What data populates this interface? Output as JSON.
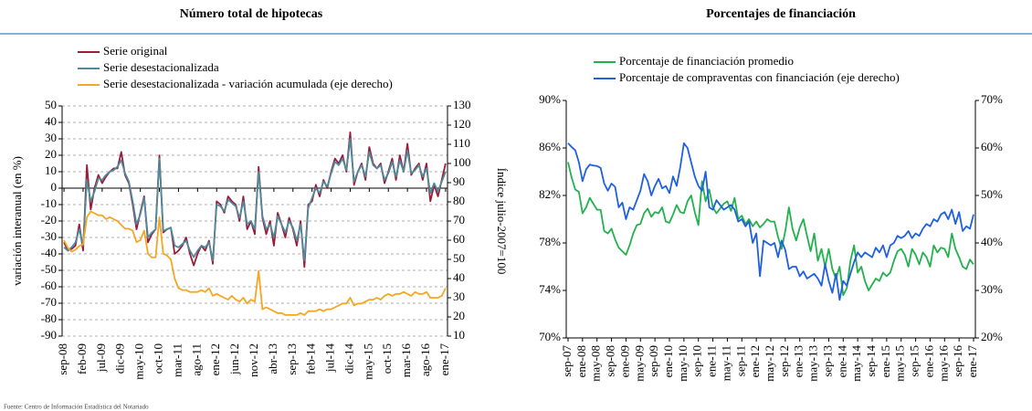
{
  "chart_data": [
    {
      "type": "line",
      "title": "Número total de hipotecas",
      "ylabel": "variación interanual (en %)",
      "y2label": "Índice julio-2007=100",
      "ylim": [
        -90,
        50
      ],
      "yticks": [
        -90,
        -80,
        -70,
        -60,
        -50,
        -40,
        -30,
        -20,
        -10,
        0,
        10,
        20,
        30,
        40,
        50
      ],
      "y2lim": [
        10,
        130
      ],
      "y2ticks": [
        10,
        20,
        30,
        40,
        50,
        60,
        70,
        80,
        90,
        100,
        110,
        120,
        130
      ],
      "grid": true,
      "categories": [
        "sep-08",
        null,
        null,
        null,
        null,
        "feb-09",
        null,
        null,
        null,
        null,
        "jul-09",
        null,
        null,
        null,
        null,
        "dic-09",
        null,
        null,
        null,
        null,
        "may-10",
        null,
        null,
        null,
        null,
        "oct-10",
        null,
        null,
        null,
        null,
        "mar-11",
        null,
        null,
        null,
        null,
        "ago-11",
        null,
        null,
        null,
        null,
        "ene-12",
        null,
        null,
        null,
        null,
        "jun-12",
        null,
        null,
        null,
        null,
        "nov-12",
        null,
        null,
        null,
        null,
        "abr-13",
        null,
        null,
        null,
        null,
        "sep-13",
        null,
        null,
        null,
        null,
        "feb-14",
        null,
        null,
        null,
        null,
        "jul-14",
        null,
        null,
        null,
        null,
        "dic-14",
        null,
        null,
        null,
        null,
        "may-15",
        null,
        null,
        null,
        null,
        "oct-15",
        null,
        null,
        null,
        null,
        "mar-16",
        null,
        null,
        null,
        null,
        "ago-16",
        null,
        null,
        null,
        null,
        "ene-17"
      ],
      "series": [
        {
          "name": "Serie original",
          "color": "#9b1b3a",
          "values": [
            -33,
            -38,
            -37,
            -35,
            -22,
            -38,
            14,
            -13,
            0,
            8,
            3,
            7,
            10,
            12,
            12,
            22,
            8,
            3,
            -10,
            -25,
            -15,
            -5,
            -33,
            -28,
            -25,
            20,
            -27,
            -25,
            -24,
            -40,
            -38,
            -35,
            -30,
            -40,
            -47,
            -40,
            -35,
            -38,
            -32,
            -46,
            -8,
            -10,
            -15,
            -5,
            -8,
            -10,
            -20,
            -5,
            -25,
            -20,
            -28,
            13,
            -18,
            -28,
            -20,
            -35,
            -15,
            -22,
            -30,
            -18,
            -25,
            -35,
            -20,
            -48,
            -10,
            -8,
            2,
            -5,
            5,
            0,
            10,
            18,
            15,
            20,
            10,
            34,
            2,
            10,
            15,
            5,
            25,
            15,
            12,
            15,
            3,
            10,
            18,
            5,
            20,
            10,
            27,
            8,
            12,
            15,
            5,
            15,
            -8,
            2,
            -5,
            5,
            15
          ]
        },
        {
          "name": "Serie desestacionalizada",
          "color": "#4e8a9a",
          "values": [
            -36,
            -38,
            -36,
            -33,
            -25,
            -35,
            5,
            -8,
            -2,
            6,
            5,
            8,
            10,
            11,
            13,
            17,
            9,
            4,
            -8,
            -22,
            -16,
            -6,
            -30,
            -27,
            -25,
            18,
            -26,
            -25,
            -24,
            -35,
            -36,
            -34,
            -32,
            -38,
            -42,
            -38,
            -35,
            -36,
            -33,
            -44,
            -10,
            -11,
            -14,
            -7,
            -9,
            -11,
            -18,
            -8,
            -22,
            -20,
            -25,
            10,
            -17,
            -25,
            -22,
            -30,
            -17,
            -22,
            -27,
            -20,
            -24,
            -32,
            -22,
            -44,
            -12,
            -6,
            0,
            -3,
            4,
            1,
            9,
            16,
            14,
            18,
            11,
            30,
            4,
            10,
            14,
            7,
            22,
            14,
            12,
            14,
            5,
            9,
            16,
            7,
            17,
            10,
            23,
            9,
            11,
            14,
            7,
            12,
            -3,
            3,
            -2,
            4,
            10
          ]
        },
        {
          "name": "Serie desestacionalizada - variación acumulada (eje derecho)",
          "color": "#f5a623",
          "axis": "y2",
          "values": [
            60,
            56,
            54,
            55,
            57,
            58,
            72,
            75,
            74,
            73,
            73,
            71,
            72,
            71,
            70,
            68,
            66,
            66,
            65,
            59,
            60,
            65,
            53,
            51,
            51,
            72,
            53,
            52,
            50,
            40,
            35,
            34,
            34,
            33,
            33,
            33,
            34,
            33,
            35,
            31,
            32,
            31,
            30,
            29,
            31,
            29,
            28,
            30,
            27,
            29,
            28,
            44,
            24,
            25,
            24,
            23,
            22,
            22,
            21,
            21,
            21,
            21,
            22,
            21,
            23,
            23,
            23,
            24,
            23,
            24,
            24,
            25,
            26,
            27,
            27,
            30,
            26,
            27,
            27,
            28,
            29,
            29,
            30,
            29,
            31,
            32,
            31,
            32,
            32,
            33,
            32,
            31,
            33,
            32,
            32,
            33,
            30,
            30,
            30,
            31,
            35
          ]
        }
      ]
    },
    {
      "type": "line",
      "title": "Porcentajes de financiación",
      "ylim": [
        70,
        90
      ],
      "yticks": [
        {
          "value": 70,
          "label": "70%"
        },
        {
          "value": 74,
          "label": "74%"
        },
        {
          "value": 78,
          "label": "78%"
        },
        {
          "value": 82,
          "label": "82%"
        },
        {
          "value": 86,
          "label": "86%"
        },
        {
          "value": 90,
          "label": "90%"
        }
      ],
      "y2lim": [
        20,
        70
      ],
      "y2ticks": [
        {
          "value": 20,
          "label": "20%"
        },
        {
          "value": 30,
          "label": "30%"
        },
        {
          "value": 40,
          "label": "40%"
        },
        {
          "value": 50,
          "label": "50%"
        },
        {
          "value": 60,
          "label": "60%"
        },
        {
          "value": 70,
          "label": "70%"
        }
      ],
      "grid": false,
      "categories": [
        "sep-07",
        null,
        null,
        null,
        "ene-08",
        null,
        null,
        null,
        "may-08",
        null,
        null,
        null,
        "sep-08",
        null,
        null,
        null,
        "ene-09",
        null,
        null,
        null,
        "may-09",
        null,
        null,
        null,
        "sep-09",
        null,
        null,
        null,
        "ene-10",
        null,
        null,
        null,
        "may-10",
        null,
        null,
        null,
        "sep-10",
        null,
        null,
        null,
        "ene-11",
        null,
        null,
        null,
        "may-11",
        null,
        null,
        null,
        "sep-11",
        null,
        null,
        null,
        "ene-12",
        null,
        null,
        null,
        "may-12",
        null,
        null,
        null,
        "sep-12",
        null,
        null,
        null,
        "ene-13",
        null,
        null,
        null,
        "may-13",
        null,
        null,
        null,
        "sep-13",
        null,
        null,
        null,
        "ene-14",
        null,
        null,
        null,
        "may-14",
        null,
        null,
        null,
        "sep-14",
        null,
        null,
        null,
        "ene-15",
        null,
        null,
        null,
        "may-15",
        null,
        null,
        null,
        "sep-15",
        null,
        null,
        null,
        "ene-16",
        null,
        null,
        null,
        "may-16",
        null,
        null,
        null,
        "sep-16",
        null,
        null,
        null,
        "ene-17"
      ],
      "series": [
        {
          "name": "Porcentaje de financiación promedio",
          "color": "#22b14c",
          "values": [
            84.8,
            83.5,
            82.5,
            82.3,
            80.5,
            81.0,
            81.8,
            81.3,
            80.8,
            80.8,
            79.0,
            78.8,
            79.2,
            78.3,
            77.6,
            77.3,
            77.0,
            77.8,
            78.8,
            79.5,
            79.6,
            80.5,
            80.9,
            80.2,
            80.6,
            80.5,
            81.0,
            79.8,
            79.7,
            80.4,
            81.2,
            80.6,
            80.5,
            81.5,
            82.0,
            80.6,
            79.5,
            83.2,
            81.5,
            82.5,
            81.0,
            80.5,
            80.9,
            81.3,
            81.5,
            80.7,
            81.8,
            80.0,
            80.3,
            79.6,
            80.0,
            79.4,
            79.8,
            79.3,
            79.6,
            80.0,
            79.8,
            79.8,
            78.5,
            77.5,
            79.0,
            81.0,
            79.2,
            78.2,
            79.3,
            80.0,
            78.6,
            77.3,
            78.8,
            76.5,
            77.5,
            76.0,
            77.5,
            75.8,
            75.0,
            76.0,
            73.6,
            74.2,
            76.5,
            77.8,
            75.5,
            76.0,
            74.8,
            74.0,
            74.5,
            75.0,
            74.8,
            75.5,
            75.2,
            75.5,
            76.5,
            77.3,
            77.5,
            77.0,
            76.0,
            77.5,
            77.0,
            76.2,
            77.2,
            76.8,
            76.0,
            77.8,
            77.2,
            77.6,
            77.5,
            76.8,
            78.8,
            77.5,
            76.8,
            76.0,
            75.8,
            76.6,
            76.2
          ]
        },
        {
          "name": "Porcentaje de compraventas con financiación (eje derecho)",
          "color": "#1f5fe0",
          "axis": "y2",
          "values": [
            61.0,
            60.2,
            59.5,
            57.0,
            53.0,
            55.5,
            56.5,
            56.3,
            56.2,
            55.8,
            52.5,
            51.0,
            52.5,
            51.8,
            47.5,
            48.5,
            45.0,
            47.5,
            47.0,
            49.0,
            51.0,
            54.5,
            53.0,
            50.0,
            52.0,
            53.5,
            51.5,
            52.0,
            50.5,
            54.0,
            52.0,
            56.0,
            61.0,
            60.0,
            57.0,
            54.0,
            52.0,
            51.0,
            55.0,
            47.5,
            47.0,
            49.0,
            48.0,
            47.0,
            47.5,
            48.0,
            47.0,
            44.5,
            45.0,
            43.5,
            44.5,
            40.0,
            42.0,
            33.0,
            40.5,
            40.0,
            39.5,
            40.0,
            37.0,
            40.5,
            38.5,
            34.5,
            35.0,
            35.0,
            33.0,
            34.0,
            32.5,
            33.0,
            33.5,
            32.5,
            31.0,
            35.5,
            32.0,
            29.5,
            33.5,
            28.0,
            32.0,
            31.0,
            33.5,
            36.0,
            38.0,
            37.0,
            38.0,
            37.5,
            37.0,
            39.0,
            38.0,
            39.5,
            37.0,
            39.5,
            40.0,
            41.5,
            41.0,
            41.5,
            42.5,
            41.0,
            42.0,
            41.5,
            43.0,
            44.0,
            43.5,
            45.0,
            44.5,
            46.0,
            46.5,
            45.0,
            47.0,
            44.0,
            46.5,
            42.5,
            43.5,
            43.0,
            46.0
          ]
        }
      ]
    }
  ],
  "source": "Fuente: Centro de Información Estadística del Notariado"
}
